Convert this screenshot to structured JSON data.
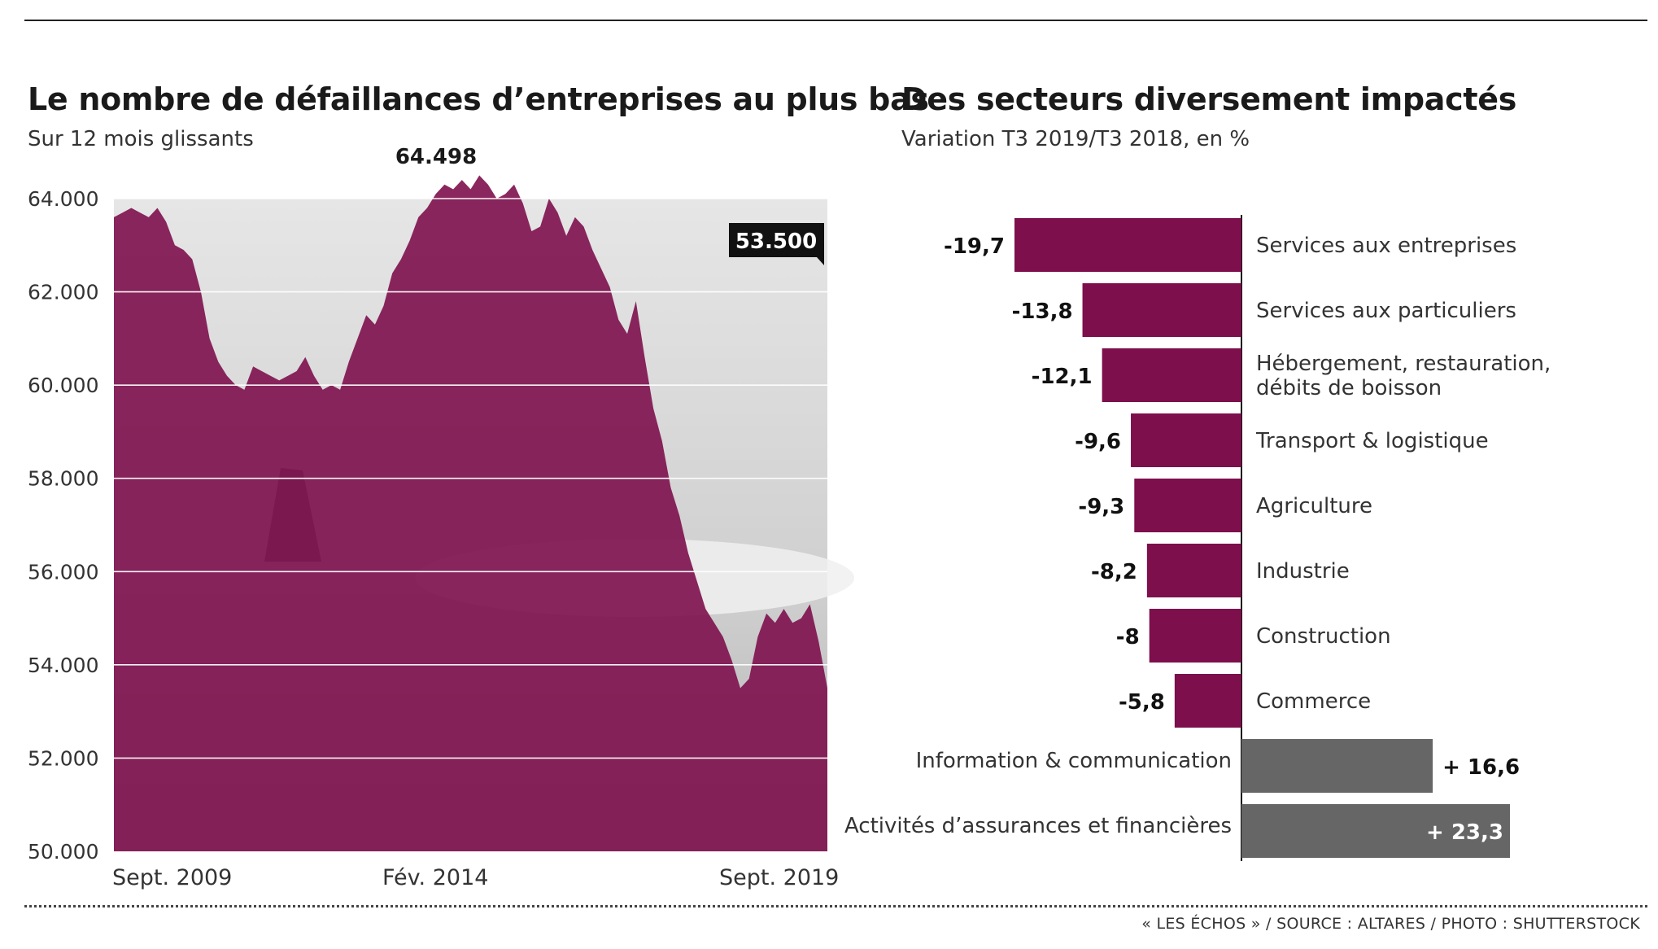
{
  "left_chart": {
    "title": "Le nombre de défaillances d’entreprises au plus bas",
    "subtitle": "Sur 12 mois glissants"
  },
  "right_chart": {
    "title": "Des secteurs diversement impactés",
    "subtitle": "Variation T3 2019/T3 2018, en %"
  },
  "source_text": "« LES ÉCHOS » / SOURCE : ALTARES / PHOTO : SHUTTERSTOCK",
  "colors": {
    "area": "#7d0f4c",
    "negative_bar": "#7d0f4c",
    "positive_bar": "#666666",
    "chart_bg": "#d6d6d6",
    "callout_bg": "#111111"
  },
  "chart_data": [
    {
      "type": "area",
      "title": "Le nombre de défaillances d’entreprises au plus bas",
      "subtitle": "Sur 12 mois glissants",
      "ylim": [
        50000,
        64000
      ],
      "yticks": [
        50000,
        52000,
        54000,
        56000,
        58000,
        60000,
        62000,
        64000
      ],
      "ytick_labels": [
        "50.000",
        "52.000",
        "54.000",
        "56.000",
        "58.000",
        "60.000",
        "62.000",
        "64.000"
      ],
      "xtick_labels": [
        "Sept. 2009",
        "Fév. 2014",
        "Sept. 2019"
      ],
      "grid": true,
      "annotations": [
        {
          "label": "64.498",
          "x": "Fév. 2014",
          "value": 64498
        },
        {
          "label": "53.500",
          "x": "Sept. 2019",
          "value": 53500
        }
      ],
      "values": [
        63600,
        63700,
        63800,
        63700,
        63600,
        63800,
        63500,
        63000,
        62900,
        62700,
        62000,
        61000,
        60500,
        60200,
        60000,
        59900,
        60400,
        60300,
        60200,
        60100,
        60200,
        60300,
        60600,
        60200,
        59900,
        60000,
        59900,
        60500,
        61000,
        61500,
        61300,
        61700,
        62400,
        62700,
        63100,
        63600,
        63800,
        64100,
        64300,
        64200,
        64400,
        64200,
        64498,
        64300,
        64000,
        64100,
        64300,
        63900,
        63300,
        63400,
        64000,
        63700,
        63200,
        63600,
        63400,
        62900,
        62500,
        62100,
        61400,
        61100,
        61800,
        60600,
        59500,
        58800,
        57800,
        57200,
        56400,
        55800,
        55200,
        54900,
        54600,
        54100,
        53500,
        53700,
        54600,
        55100,
        54900,
        55200,
        54900,
        55000,
        55300,
        54500,
        53500
      ]
    },
    {
      "type": "bar",
      "orientation": "horizontal",
      "title": "Des secteurs diversement impactés",
      "subtitle": "Variation T3 2019/T3 2018, en %",
      "categories": [
        "Services aux entreprises",
        "Services aux particuliers",
        "Hébergement, restauration, débits de boisson",
        "Transport & logistique",
        "Agriculture",
        "Industrie",
        "Construction",
        "Commerce",
        "Information & communication",
        "Activités d’assurances et financières"
      ],
      "category_lines": [
        [
          "Services aux entreprises"
        ],
        [
          "Services aux particuliers"
        ],
        [
          "Hébergement, restauration,",
          "débits de boisson"
        ],
        [
          "Transport & logistique"
        ],
        [
          "Agriculture"
        ],
        [
          "Industrie"
        ],
        [
          "Construction"
        ],
        [
          "Commerce"
        ],
        [
          "Information & communication"
        ],
        [
          "Activités d’assurances et financières"
        ]
      ],
      "values": [
        -19.7,
        -13.8,
        -12.1,
        -9.6,
        -9.3,
        -8.2,
        -8,
        -5.8,
        16.6,
        23.3
      ],
      "value_labels": [
        "-19,7",
        "-13,8",
        "-12,1",
        "-9,6",
        "-9,3",
        "-8,2",
        "-8",
        "-5,8",
        "+ 16,6",
        "+ 23,3"
      ]
    }
  ]
}
